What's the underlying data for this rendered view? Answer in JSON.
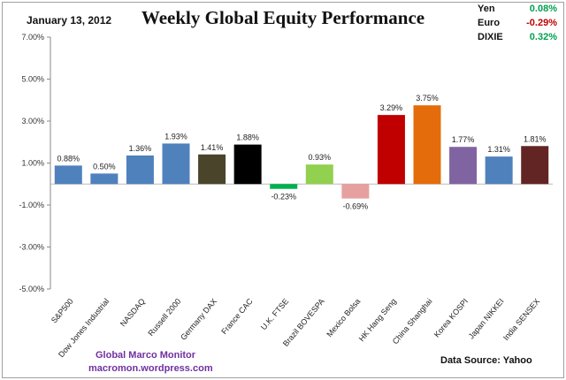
{
  "header": {
    "date": "January 13, 2012"
  },
  "currencies": [
    {
      "name": "Yen",
      "value": "0.08%",
      "color": "#00a050"
    },
    {
      "name": "Euro",
      "value": "-0.29%",
      "color": "#c00000"
    },
    {
      "name": "DIXIE",
      "value": "0.32%",
      "color": "#00a050"
    }
  ],
  "footer": {
    "credit_name": "Global Marco Monitor",
    "credit_site": "macromon.wordpress.com",
    "source": "Data Source:   Yahoo"
  },
  "chart_data": {
    "type": "bar",
    "title": "Weekly Global Equity Performance",
    "categories": [
      "S&P500",
      "Dow Jones Industrial",
      "NASDAQ",
      "Russell 2000",
      "Germany DAX",
      "France CAC",
      "U.K. FTSE",
      "Brazil BOVESPA",
      "Mexico Bolsa",
      "HK Hang Seng",
      "China Shanghai",
      "Korea KOSPI",
      "Japan NIKKEI",
      "India SENSEX"
    ],
    "values": [
      0.88,
      0.5,
      1.36,
      1.93,
      1.41,
      1.88,
      -0.23,
      0.93,
      -0.69,
      3.29,
      3.75,
      1.77,
      1.31,
      1.81
    ],
    "data_labels": [
      "0.88%",
      "0.50%",
      "1.36%",
      "1.93%",
      "1.41%",
      "1.88%",
      "-0.23%",
      "0.93%",
      "-0.69%",
      "3.29%",
      "3.75%",
      "1.77%",
      "1.31%",
      "1.81%"
    ],
    "colors": [
      "#4f81bd",
      "#4f81bd",
      "#4f81bd",
      "#4f81bd",
      "#4a452a",
      "#000000",
      "#00b050",
      "#92d050",
      "#e6a0a0",
      "#c00000",
      "#e46c0a",
      "#8064a2",
      "#4f81bd",
      "#632523"
    ],
    "ylim": [
      -5,
      7
    ],
    "yticks": [
      7,
      5,
      3,
      1,
      -1,
      -3,
      -5
    ],
    "ytick_labels": [
      "7.00%",
      "5.00%",
      "3.00%",
      "1.00%",
      "-1.00%",
      "-3.00%",
      "-5.00%"
    ],
    "grid": false,
    "legend": "none"
  }
}
